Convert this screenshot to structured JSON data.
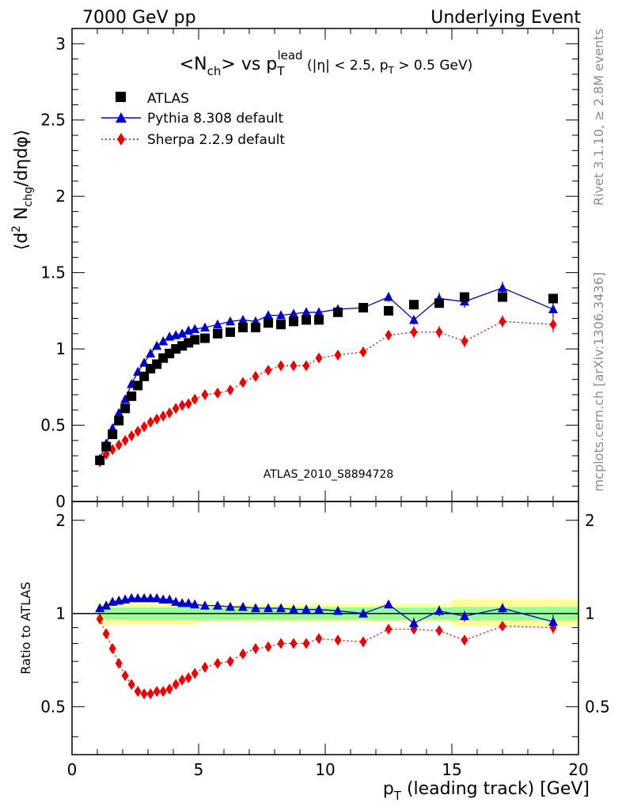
{
  "header": {
    "left": "7000 GeV pp",
    "right": "Underlying Event"
  },
  "side_labels": {
    "rivet": "Rivet 3.1.10, ≥ 2.8M events",
    "mcplots": "mcplots.cern.ch [arXiv:1306.3436]"
  },
  "watermark": "ATLAS_2010_S8894728",
  "colors": {
    "atlas": "#000000",
    "pythia": "#0000cc",
    "sherpa": "#ee0000",
    "band_inner": "#99ff99",
    "band_outer": "#ffff99"
  },
  "chart_data": [
    {
      "type": "scatter",
      "title": "<N_ch> vs p_T^lead (|η| < 2.5, p_T > 0.5 GeV)",
      "title_parts": {
        "a": "<N",
        "a_sub": "ch",
        "b": "> vs p",
        "b_sub": "T",
        "b_sup": "lead",
        "c": " (|η| < 2.5, p",
        "c_sub": "T",
        "d": " > 0.5 GeV)"
      },
      "ylabel": "⟨d² N_chg/dηdφ⟩",
      "ylabel_parts": {
        "a": "⟨d",
        "a_sup": "2",
        "b": " N",
        "b_sub": "chg",
        "c": "/dηdφ⟩"
      },
      "xlim": [
        0,
        20
      ],
      "ylim": [
        0,
        3.1
      ],
      "yticks": [
        "0",
        "0.5",
        "1",
        "1.5",
        "2",
        "2.5",
        "3"
      ],
      "legend_position": "top-left",
      "x": [
        1.1,
        1.35,
        1.6,
        1.85,
        2.1,
        2.35,
        2.6,
        2.85,
        3.1,
        3.35,
        3.6,
        3.85,
        4.1,
        4.35,
        4.6,
        4.85,
        5.25,
        5.75,
        6.25,
        6.75,
        7.25,
        7.75,
        8.25,
        8.75,
        9.25,
        9.75,
        10.5,
        11.5,
        12.5,
        13.5,
        14.5,
        15.5,
        17.0,
        19.0
      ],
      "series": [
        {
          "name": "ATLAS",
          "marker": "square",
          "values": [
            0.27,
            0.36,
            0.44,
            0.53,
            0.61,
            0.69,
            0.76,
            0.82,
            0.87,
            0.9,
            0.94,
            0.97,
            1.0,
            1.02,
            1.04,
            1.06,
            1.07,
            1.1,
            1.11,
            1.14,
            1.14,
            1.17,
            1.16,
            1.18,
            1.19,
            1.19,
            1.24,
            1.27,
            1.25,
            1.29,
            1.3,
            1.34,
            1.34,
            1.33
          ]
        },
        {
          "name": "Pythia 8.308 default",
          "marker": "triangle",
          "values": [
            0.28,
            0.38,
            0.48,
            0.58,
            0.67,
            0.77,
            0.85,
            0.91,
            0.97,
            1.02,
            1.05,
            1.08,
            1.09,
            1.1,
            1.12,
            1.13,
            1.14,
            1.16,
            1.18,
            1.19,
            1.18,
            1.22,
            1.22,
            1.23,
            1.24,
            1.24,
            1.26,
            1.27,
            1.34,
            1.19,
            1.33,
            1.31,
            1.4,
            1.26
          ],
          "errors": [
            0,
            0,
            0,
            0,
            0,
            0,
            0,
            0,
            0,
            0,
            0,
            0,
            0,
            0,
            0,
            0,
            0,
            0,
            0,
            0,
            0,
            0.01,
            0.01,
            0.01,
            0.01,
            0.02,
            0.02,
            0.02,
            0.03,
            0.03,
            0.04,
            0.04,
            0.04,
            0.05
          ]
        },
        {
          "name": "Sherpa 2.2.9 default",
          "marker": "diamond",
          "values": [
            0.26,
            0.31,
            0.34,
            0.37,
            0.4,
            0.43,
            0.46,
            0.49,
            0.52,
            0.54,
            0.56,
            0.58,
            0.61,
            0.63,
            0.64,
            0.67,
            0.7,
            0.71,
            0.73,
            0.78,
            0.82,
            0.86,
            0.89,
            0.89,
            0.89,
            0.94,
            0.96,
            0.98,
            1.09,
            1.11,
            1.11,
            1.05,
            1.18,
            1.16
          ],
          "errors": [
            0,
            0,
            0,
            0,
            0,
            0,
            0,
            0,
            0,
            0,
            0,
            0,
            0,
            0,
            0,
            0,
            0,
            0,
            0,
            0,
            0,
            0.01,
            0.01,
            0.01,
            0.01,
            0.02,
            0.02,
            0.02,
            0.03,
            0.04,
            0.04,
            0.04,
            0.04,
            0.05
          ]
        }
      ]
    },
    {
      "type": "scatter",
      "ylabel": "Ratio to ATLAS",
      "xlabel": "p_T (leading track) [GeV]",
      "xlabel_parts": {
        "a": "p",
        "a_sub": "T",
        "b": " (leading track) [GeV]"
      },
      "xlim": [
        0,
        20
      ],
      "xticks": [
        "0",
        "5",
        "10",
        "15",
        "20"
      ],
      "ylim": [
        0.35,
        2.3
      ],
      "yticks": [
        "0.5",
        "1",
        "2"
      ],
      "ytick_values": [
        0.5,
        1,
        2
      ],
      "log_y": true,
      "reference_line": 1,
      "bands": {
        "edges": [
          1,
          5,
          15,
          20
        ],
        "inner": [
          [
            0.955,
            1.045
          ],
          [
            0.955,
            1.045
          ],
          [
            0.95,
            1.05
          ]
        ],
        "outer": [
          [
            0.92,
            1.08
          ],
          [
            0.94,
            1.07
          ],
          [
            0.91,
            1.11
          ]
        ]
      },
      "series": [
        {
          "name": "Pythia 8.308 default",
          "marker": "triangle",
          "values": [
            1.04,
            1.06,
            1.09,
            1.1,
            1.11,
            1.12,
            1.12,
            1.12,
            1.12,
            1.12,
            1.11,
            1.11,
            1.09,
            1.08,
            1.08,
            1.07,
            1.06,
            1.06,
            1.05,
            1.05,
            1.04,
            1.04,
            1.04,
            1.03,
            1.03,
            1.03,
            1.02,
            1.0,
            1.07,
            0.93,
            1.02,
            0.98,
            1.04,
            0.94
          ],
          "errors": [
            0,
            0,
            0,
            0,
            0,
            0,
            0,
            0,
            0,
            0,
            0,
            0,
            0,
            0,
            0,
            0,
            0,
            0,
            0,
            0,
            0,
            0.01,
            0.01,
            0.01,
            0.01,
            0.02,
            0.02,
            0.02,
            0.03,
            0.04,
            0.04,
            0.04,
            0.04,
            0.05
          ]
        },
        {
          "name": "Sherpa 2.2.9 default",
          "marker": "diamond",
          "values": [
            0.96,
            0.86,
            0.77,
            0.69,
            0.63,
            0.59,
            0.56,
            0.55,
            0.55,
            0.56,
            0.56,
            0.57,
            0.59,
            0.61,
            0.62,
            0.64,
            0.67,
            0.69,
            0.7,
            0.74,
            0.77,
            0.78,
            0.8,
            0.8,
            0.8,
            0.83,
            0.82,
            0.81,
            0.89,
            0.89,
            0.88,
            0.82,
            0.91,
            0.9
          ],
          "errors": [
            0,
            0,
            0,
            0,
            0,
            0,
            0,
            0,
            0,
            0,
            0,
            0,
            0,
            0,
            0,
            0,
            0,
            0,
            0,
            0,
            0,
            0.01,
            0.01,
            0.01,
            0.01,
            0.02,
            0.02,
            0.02,
            0.03,
            0.03,
            0.03,
            0.03,
            0.03,
            0.04
          ]
        }
      ]
    }
  ]
}
